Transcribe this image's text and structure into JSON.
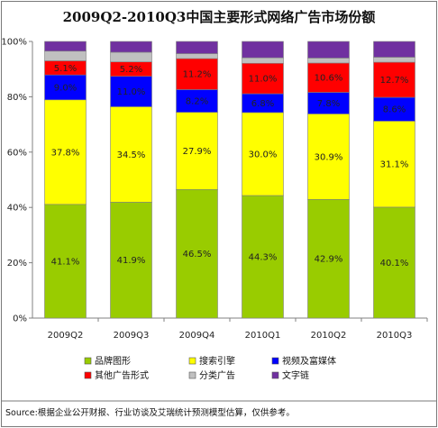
{
  "chart_data": {
    "type": "bar",
    "stacked": true,
    "title": "2009Q2-2010Q3中国主要形式网络广告市场份额",
    "categories": [
      "2009Q2",
      "2009Q3",
      "2009Q4",
      "2010Q1",
      "2010Q2",
      "2010Q3"
    ],
    "ylim": [
      0,
      100
    ],
    "yticks": [
      "0%",
      "20%",
      "40%",
      "60%",
      "80%",
      "100%"
    ],
    "grid": false,
    "legend_position": "bottom",
    "series": [
      {
        "name": "品牌图形",
        "color": "#99cc00",
        "values": [
          41.1,
          41.9,
          46.5,
          44.3,
          42.9,
          40.1
        ],
        "labels": [
          "41.1%",
          "41.9%",
          "46.5%",
          "44.3%",
          "42.9%",
          "40.1%"
        ]
      },
      {
        "name": "搜索引擎",
        "color": "#ffff00",
        "values": [
          37.8,
          34.5,
          27.9,
          30.0,
          30.9,
          31.1
        ],
        "labels": [
          "37.8%",
          "34.5%",
          "27.9%",
          "30.0%",
          "30.9%",
          "31.1%"
        ]
      },
      {
        "name": "视频及富媒体",
        "color": "#0000ff",
        "values": [
          9.0,
          11.0,
          8.2,
          6.8,
          7.8,
          8.6
        ],
        "labels": [
          "9.0%",
          "11.0%",
          "8.2%",
          "6.8%",
          "7.8%",
          "8.6%"
        ]
      },
      {
        "name": "其他广告形式",
        "color": "#ff0000",
        "values": [
          5.1,
          5.2,
          11.2,
          11.0,
          10.6,
          12.7
        ],
        "labels": [
          "5.1%",
          "5.2%",
          "11.2%",
          "11.0%",
          "10.6%",
          "12.7%"
        ]
      },
      {
        "name": "分类广告",
        "color": "#c0c0c0",
        "values": [
          3.5,
          3.5,
          1.8,
          2.0,
          1.8,
          1.8
        ],
        "labels": [
          "",
          "",
          "",
          "",
          "",
          ""
        ]
      },
      {
        "name": "文字链",
        "color": "#7030a0",
        "values": [
          3.5,
          3.9,
          4.4,
          5.9,
          6.0,
          5.7
        ],
        "labels": [
          "",
          "",
          "",
          "",
          "",
          ""
        ]
      }
    ]
  },
  "source": "Source:根据企业公开财报、行业访谈及艾瑞统计预测模型估算，仅供参考。"
}
